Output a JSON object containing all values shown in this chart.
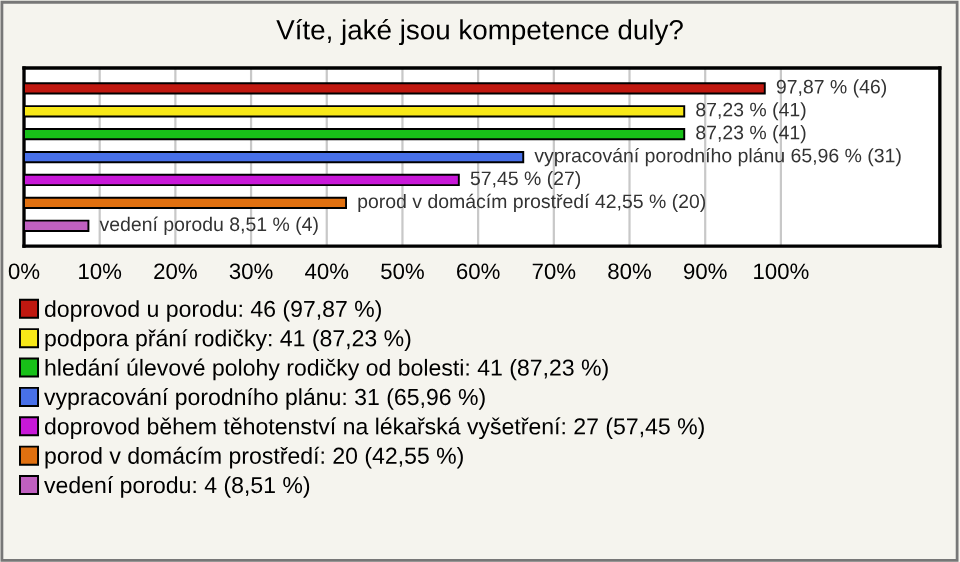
{
  "chart_data": {
    "type": "bar",
    "orientation": "horizontal",
    "title": "Víte, jaké jsou kompetence duly?",
    "categories": [
      null
    ],
    "series": [
      {
        "name": "doprovod u porodu: 46 (97,87 %)",
        "color": "#c01810",
        "values": [
          97.87
        ],
        "value_labels": [
          "97,87 % (46)"
        ]
      },
      {
        "name": "podpora přání rodičky: 41 (87,23 %)",
        "color": "#f8e818",
        "values": [
          87.23
        ],
        "value_labels": [
          "87,23 % (41)"
        ]
      },
      {
        "name": "hledání úlevové polohy rodičky od bolesti: 41 (87,23 %)",
        "color": "#18c018",
        "values": [
          87.23
        ],
        "value_labels": [
          "87,23 % (41)"
        ]
      },
      {
        "name": "vypracování porodního plánu: 31 (65,96 %)",
        "color": "#4870e8",
        "values": [
          65.96
        ],
        "value_labels": [
          "vypracování porodního plánu 65,96 % (31)"
        ]
      },
      {
        "name": "doprovod během těhotenství na lékařská vyšetření: 27 (57,45 %)",
        "color": "#c818d8",
        "values": [
          57.45
        ],
        "value_labels": [
          "57,45 % (27)"
        ]
      },
      {
        "name": "porod v domácím prostředí: 20 (42,55 %)",
        "color": "#e07010",
        "values": [
          42.55
        ],
        "value_labels": [
          "porod v domácím prostředí 42,55 % (20)"
        ]
      },
      {
        "name": "vedení porodu: 4 (8,51 %)",
        "color": "#c060c0",
        "values": [
          8.51
        ],
        "value_labels": [
          "vedení porodu 8,51 % (4)"
        ]
      }
    ],
    "xlim": [
      0,
      121
    ],
    "xticks": [
      {
        "value": 0,
        "label": "0%"
      },
      {
        "value": 10,
        "label": "10%"
      },
      {
        "value": 20,
        "label": "20%"
      },
      {
        "value": 30,
        "label": "30%"
      },
      {
        "value": 40,
        "label": "40%"
      },
      {
        "value": 50,
        "label": "50%"
      },
      {
        "value": 60,
        "label": "60%"
      },
      {
        "value": 70,
        "label": "70%"
      },
      {
        "value": 80,
        "label": "80%"
      },
      {
        "value": 90,
        "label": "90%"
      },
      {
        "value": 100,
        "label": "100%"
      }
    ],
    "grid": "x",
    "legend": "bottom"
  }
}
